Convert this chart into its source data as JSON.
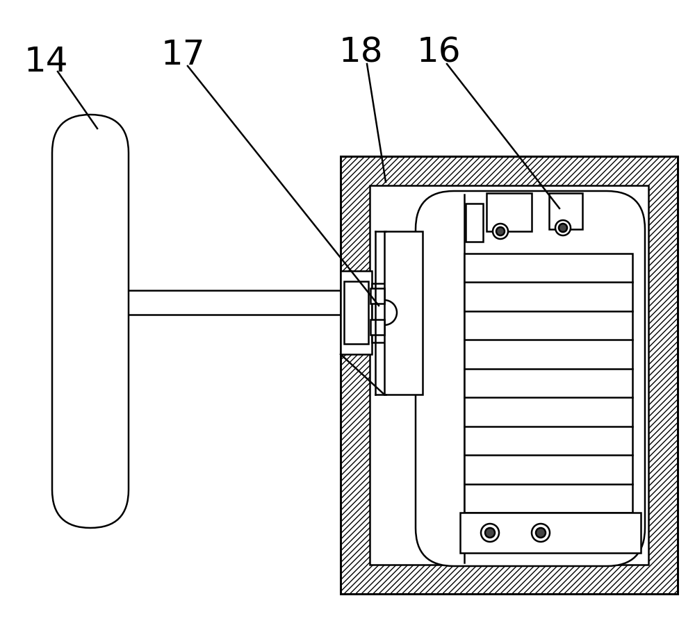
{
  "bg_color": "#ffffff",
  "line_color": "#000000",
  "label_14": "14",
  "label_17": "17",
  "label_18": "18",
  "label_16": "16",
  "label_fontsize": 36,
  "fig_width": 10.0,
  "fig_height": 9.07
}
